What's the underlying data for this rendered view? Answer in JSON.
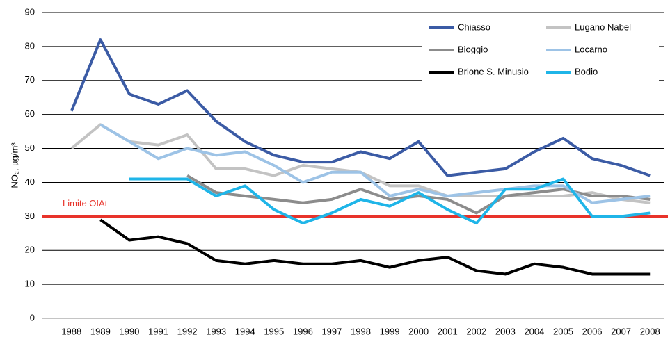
{
  "chart_data": {
    "type": "line",
    "ylabel": "NO₂, µg/m³",
    "categories": [
      "1988",
      "1989",
      "1990",
      "1991",
      "1992",
      "1993",
      "1994",
      "1995",
      "1996",
      "1997",
      "1998",
      "1999",
      "2000",
      "2001",
      "2002",
      "2003",
      "2004",
      "2005",
      "2006",
      "2007",
      "2008"
    ],
    "series": [
      {
        "name": "Chiasso",
        "color": "#3b5ba5",
        "values": [
          61,
          82,
          66,
          63,
          67,
          58,
          52,
          48,
          46,
          46,
          49,
          47,
          52,
          42,
          43,
          44,
          49,
          53,
          47,
          45,
          42
        ]
      },
      {
        "name": "Lugano Nabel",
        "color": "#c3c3c3",
        "values": [
          50,
          57,
          52,
          51,
          54,
          44,
          44,
          42,
          45,
          44,
          43,
          39,
          39,
          36,
          36,
          36,
          36,
          36,
          37,
          35,
          34
        ]
      },
      {
        "name": "Bioggio",
        "color": "#8c8c8c",
        "values": [
          null,
          null,
          null,
          null,
          42,
          37,
          36,
          35,
          34,
          35,
          38,
          35,
          36,
          35,
          31,
          36,
          37,
          38,
          36,
          36,
          35
        ]
      },
      {
        "name": "Locarno",
        "color": "#9dc3e6",
        "values": [
          null,
          57,
          52,
          47,
          50,
          48,
          49,
          45,
          40,
          43,
          43,
          36,
          38,
          36,
          37,
          38,
          39,
          39,
          34,
          35,
          36
        ]
      },
      {
        "name": "Brione S. Minusio",
        "color": "#000000",
        "values": [
          null,
          29,
          23,
          24,
          22,
          17,
          16,
          17,
          16,
          16,
          17,
          15,
          17,
          18,
          14,
          13,
          16,
          15,
          13,
          13,
          13
        ]
      },
      {
        "name": "Bodio",
        "color": "#1fb5e8",
        "values": [
          null,
          null,
          41,
          41,
          41,
          36,
          39,
          32,
          28,
          31,
          35,
          33,
          37,
          32,
          28,
          38,
          38,
          41,
          30,
          30,
          31
        ]
      }
    ],
    "hline": {
      "value": 30,
      "label": "Limite OIAt",
      "color": "#e8332a"
    },
    "ylim": [
      0,
      90
    ],
    "yticks": [
      0,
      10,
      20,
      30,
      40,
      50,
      60,
      70,
      80,
      90
    ],
    "grid": true,
    "legend": "upper right"
  }
}
